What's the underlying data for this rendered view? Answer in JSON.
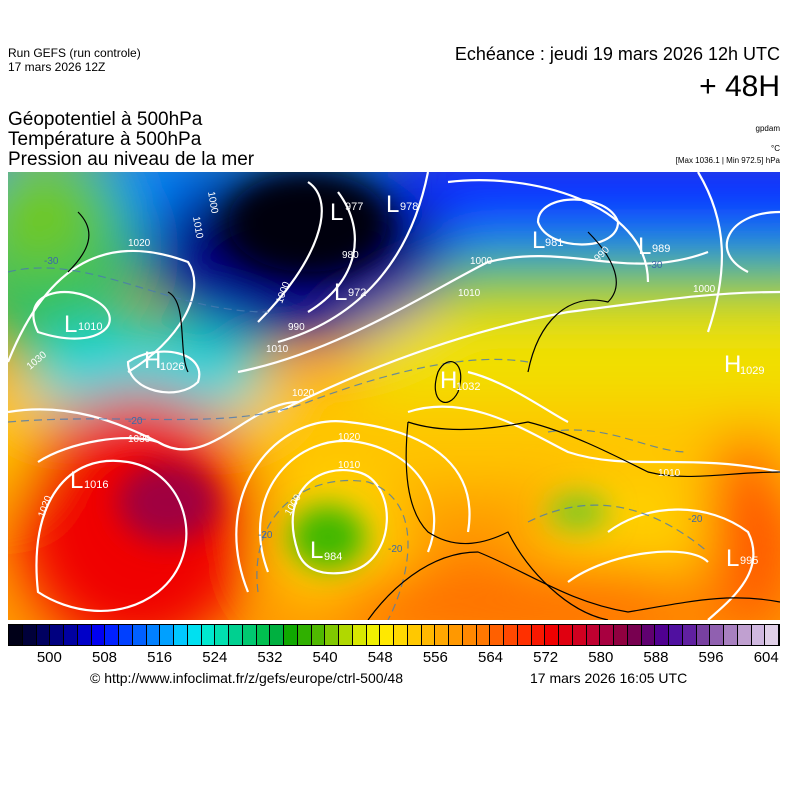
{
  "header": {
    "run_line1": "Run GEFS (run controle)",
    "run_line2": "17 mars 2026 12Z",
    "echeance": "Echéance : jeudi 19 mars 2026 12h UTC",
    "lead_time": "+ 48H"
  },
  "parameters": [
    {
      "label": "Géopotentiel à 500hPa",
      "unit": "gpdam"
    },
    {
      "label": "Température à 500hPa",
      "unit": "°C"
    },
    {
      "label": "Pression au niveau de la mer",
      "unit": "[Max 1036.1 | Min 972.5] hPa"
    }
  ],
  "map": {
    "region": "europe",
    "pressure_centers": [
      {
        "type": "L",
        "value": "977"
      },
      {
        "type": "L",
        "value": "978"
      },
      {
        "type": "L",
        "value": "972"
      },
      {
        "type": "L",
        "value": "981"
      },
      {
        "type": "L",
        "value": "989"
      },
      {
        "type": "L",
        "value": "1010"
      },
      {
        "type": "H",
        "value": "1026"
      },
      {
        "type": "H",
        "value": "1032"
      },
      {
        "type": "H",
        "value": "1029"
      },
      {
        "type": "L",
        "value": "1016"
      },
      {
        "type": "L",
        "value": "984"
      },
      {
        "type": "L",
        "value": "995"
      }
    ],
    "isobar_labels": [
      "1000",
      "1010",
      "980",
      "1000",
      "990",
      "1020",
      "1030",
      "1010",
      "1000",
      "990",
      "1010",
      "1020",
      "1010",
      "1000",
      "1020",
      "1030",
      "1020",
      "1010",
      "1000"
    ],
    "temperature_labels": [
      "-30",
      "-20",
      "-20",
      "-30",
      "-20",
      "-20"
    ]
  },
  "colorbar": {
    "ticks": [
      "500",
      "508",
      "516",
      "524",
      "532",
      "540",
      "548",
      "556",
      "564",
      "572",
      "580",
      "588",
      "596",
      "604"
    ],
    "colors": [
      "#000018",
      "#00003a",
      "#000060",
      "#000080",
      "#0000a0",
      "#0000c8",
      "#0000f0",
      "#0020ff",
      "#0040ff",
      "#0060ff",
      "#0080ff",
      "#00a0ff",
      "#00c8ff",
      "#00e0f0",
      "#00e8d0",
      "#00e0b0",
      "#00d090",
      "#00c870",
      "#00c050",
      "#00b040",
      "#10a800",
      "#30b000",
      "#50b800",
      "#80c800",
      "#b0d800",
      "#d8e800",
      "#f0f000",
      "#ffe800",
      "#ffd800",
      "#ffc800",
      "#ffb800",
      "#ffa800",
      "#ff9800",
      "#ff8800",
      "#ff7800",
      "#ff6000",
      "#ff4800",
      "#ff3000",
      "#f81800",
      "#f00000",
      "#e00010",
      "#d00020",
      "#c00030",
      "#a80040",
      "#900040",
      "#780050",
      "#600070",
      "#500090",
      "#5010a0",
      "#6020a0",
      "#7840a0",
      "#9060b0",
      "#a880c0",
      "#c0a0d0",
      "#d0b8e0",
      "#e0d0e8"
    ]
  },
  "footer": {
    "credit": "© http://www.infoclimat.fr/z/gefs/europe/ctrl-500/48",
    "generated": "17 mars 2026 16:05 UTC"
  }
}
